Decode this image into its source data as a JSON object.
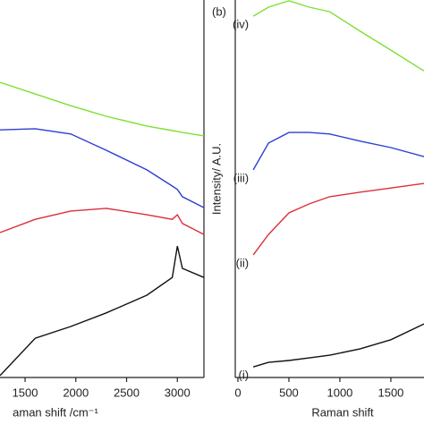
{
  "chart_data": [
    {
      "type": "line",
      "x_label": "aman shift /cm⁻¹",
      "x": [
        1253,
        1600,
        1950,
        2300,
        2700,
        2950,
        3000,
        3050,
        3262
      ],
      "xlim": [
        1253,
        3262
      ],
      "xticks": [
        1500,
        2000,
        2500,
        3000
      ],
      "ylim": [
        0,
        100
      ],
      "series": [
        {
          "color": "#7ee033",
          "values": [
            78.2,
            75.1,
            72.0,
            69.2,
            66.6,
            65.4,
            65.2,
            64.9,
            64.0
          ]
        },
        {
          "color": "#2b3fd2",
          "values": [
            65.6,
            65.9,
            64.5,
            60.2,
            55.0,
            50.7,
            49.8,
            47.9,
            45.0
          ]
        },
        {
          "color": "#d9303c",
          "values": [
            38.4,
            41.9,
            44.1,
            44.8,
            43.1,
            41.9,
            43.1,
            40.8,
            37.9
          ]
        },
        {
          "color": "#111111",
          "values": [
            0.5,
            10.4,
            13.5,
            17.1,
            21.8,
            26.5,
            34.8,
            28.9,
            26.5
          ]
        }
      ]
    },
    {
      "type": "line",
      "panel_label": "(b)",
      "x_label": "Raman shift",
      "y_label": "Intensity/ A.U.",
      "x": [
        150,
        300,
        500,
        700,
        900,
        1200,
        1500,
        1825
      ],
      "xlim": [
        -26,
        1825
      ],
      "xticks": [
        0,
        500,
        1000,
        1500
      ],
      "ylim": [
        0,
        100
      ],
      "series": [
        {
          "name": "(iv)",
          "color": "#7ee033",
          "values": [
            95.7,
            98.1,
            99.8,
            98.1,
            96.9,
            91.7,
            86.7,
            81.2
          ]
        },
        {
          "name": "(iii)",
          "color": "#2b3fd2",
          "values": [
            55.0,
            62.1,
            64.9,
            64.9,
            64.5,
            62.6,
            60.9,
            58.5
          ]
        },
        {
          "name": "(ii)",
          "color": "#d9303c",
          "values": [
            32.5,
            37.9,
            43.6,
            46.0,
            47.9,
            49.1,
            50.2,
            51.4
          ]
        },
        {
          "name": "(i)",
          "color": "#111111",
          "values": [
            2.8,
            4.0,
            4.5,
            5.2,
            5.9,
            7.6,
            10.0,
            14.2
          ]
        }
      ]
    }
  ]
}
